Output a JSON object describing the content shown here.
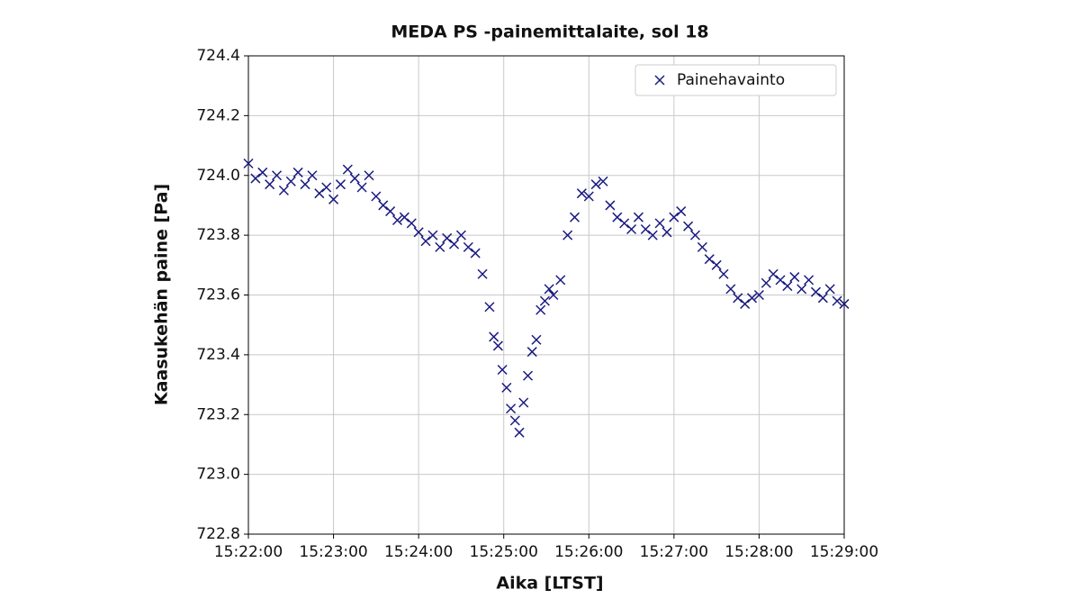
{
  "chart_data": {
    "type": "scatter",
    "title": "MEDA PS -painemittalaite, sol 18",
    "x_label": "Aika [LTST]",
    "y_label": "Kaasukehän paine [Pa]",
    "xlim": [
      "15:22:00",
      "15:29:00"
    ],
    "xticks": [
      "15:22:00",
      "15:23:00",
      "15:24:00",
      "15:25:00",
      "15:26:00",
      "15:27:00",
      "15:28:00",
      "15:29:00"
    ],
    "ylim": [
      722.8,
      724.4
    ],
    "yticks": [
      722.8,
      {
        "value": 723,
        "label": "723.0"
      },
      723.2,
      723.4,
      723.6,
      723.8,
      {
        "value": 724,
        "label": "724.0"
      },
      724.2,
      724.4
    ],
    "grid": true,
    "legend": "upper right",
    "marker": "x",
    "series": [
      {
        "name": "Painehavainto",
        "color": "#1a1a80",
        "x": [
          "15:22:00",
          "15:22:05",
          "15:22:10",
          "15:22:15",
          "15:22:20",
          "15:22:25",
          "15:22:30",
          "15:22:35",
          "15:22:40",
          "15:22:45",
          "15:22:50",
          "15:22:55",
          "15:23:00",
          "15:23:05",
          "15:23:10",
          "15:23:15",
          "15:23:20",
          "15:23:25",
          "15:23:30",
          "15:23:35",
          "15:23:40",
          "15:23:45",
          "15:23:50",
          "15:23:55",
          "15:24:00",
          "15:24:05",
          "15:24:10",
          "15:24:15",
          "15:24:20",
          "15:24:25",
          "15:24:30",
          "15:24:35",
          "15:24:40",
          "15:24:45",
          "15:24:50",
          "15:24:53",
          "15:24:56",
          "15:24:59",
          "15:25:02",
          "15:25:05",
          "15:25:08",
          "15:25:11",
          "15:25:14",
          "15:25:17",
          "15:25:20",
          "15:25:23",
          "15:25:26",
          "15:25:29",
          "15:25:32",
          "15:25:35",
          "15:25:40",
          "15:25:45",
          "15:25:50",
          "15:25:55",
          "15:26:00",
          "15:26:05",
          "15:26:10",
          "15:26:15",
          "15:26:20",
          "15:26:25",
          "15:26:30",
          "15:26:35",
          "15:26:40",
          "15:26:45",
          "15:26:50",
          "15:26:55",
          "15:27:00",
          "15:27:05",
          "15:27:10",
          "15:27:15",
          "15:27:20",
          "15:27:25",
          "15:27:30",
          "15:27:35",
          "15:27:40",
          "15:27:45",
          "15:27:50",
          "15:27:55",
          "15:28:00",
          "15:28:05",
          "15:28:10",
          "15:28:15",
          "15:28:20",
          "15:28:25",
          "15:28:30",
          "15:28:35",
          "15:28:40",
          "15:28:45",
          "15:28:50",
          "15:28:55",
          "15:29:00"
        ],
        "values": [
          724.04,
          723.99,
          724.01,
          723.97,
          724.0,
          723.95,
          723.98,
          724.01,
          723.97,
          724.0,
          723.94,
          723.96,
          723.92,
          723.97,
          724.02,
          723.99,
          723.96,
          724.0,
          723.93,
          723.9,
          723.88,
          723.85,
          723.86,
          723.84,
          723.81,
          723.78,
          723.8,
          723.76,
          723.79,
          723.77,
          723.8,
          723.76,
          723.74,
          723.67,
          723.56,
          723.46,
          723.43,
          723.35,
          723.29,
          723.22,
          723.18,
          723.14,
          723.24,
          723.33,
          723.41,
          723.45,
          723.55,
          723.58,
          723.62,
          723.6,
          723.65,
          723.8,
          723.86,
          723.94,
          723.93,
          723.97,
          723.98,
          723.9,
          723.86,
          723.84,
          723.82,
          723.86,
          723.82,
          723.8,
          723.84,
          723.81,
          723.86,
          723.88,
          723.83,
          723.8,
          723.76,
          723.72,
          723.7,
          723.67,
          723.62,
          723.59,
          723.57,
          723.59,
          723.6,
          723.64,
          723.67,
          723.65,
          723.63,
          723.66,
          723.62,
          723.65,
          723.61,
          723.59,
          723.62,
          723.58,
          723.57
        ]
      }
    ]
  }
}
